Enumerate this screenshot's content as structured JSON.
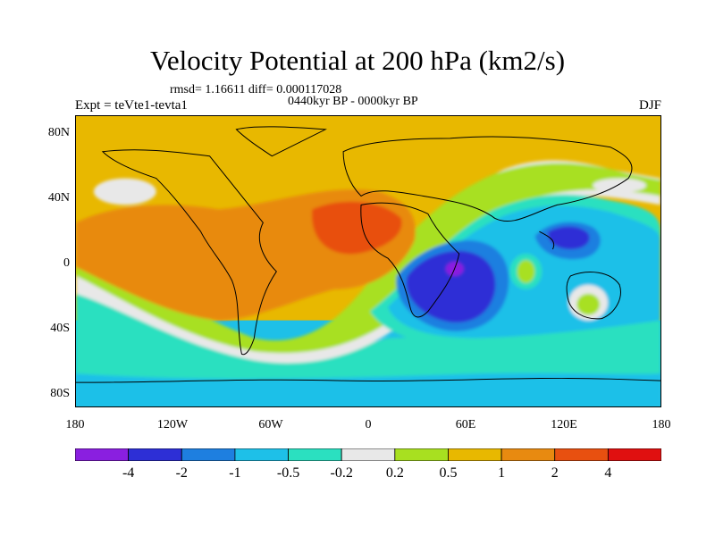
{
  "title": "Velocity Potential at 200 hPa (km2/s)",
  "stats": "rmsd= 1.16611 diff= 0.000117028",
  "period": "0440kyr BP - 0000kyr BP",
  "experiment": "Expt = teVte1-tevta1",
  "season": "DJF",
  "y_ticks": [
    "80N",
    "40N",
    "0",
    "40S",
    "80S"
  ],
  "x_ticks": [
    "180",
    "120W",
    "60W",
    "0",
    "60E",
    "120E",
    "180"
  ],
  "colorbar": {
    "labels": [
      "-4",
      "-2",
      "-1",
      "-0.5",
      "-0.2",
      "0.2",
      "0.5",
      "1",
      "2",
      "4"
    ],
    "colors": [
      "#8a1fe0",
      "#2d2fd6",
      "#1e7fe0",
      "#1ec0e8",
      "#2be0c0",
      "#e8e8e8",
      "#a8e020",
      "#e8b800",
      "#e88a10",
      "#e85010",
      "#e01010"
    ]
  },
  "chart_data": {
    "type": "heatmap",
    "title": "Velocity Potential at 200 hPa (km2/s)",
    "x_axis": [
      "180",
      "120W",
      "60W",
      "0",
      "60E",
      "120E",
      "180"
    ],
    "y_axis": [
      "80N",
      "40N",
      "0",
      "40S",
      "80S"
    ],
    "contour_levels": [
      -4,
      -2,
      -1,
      -0.5,
      -0.2,
      0.2,
      0.5,
      1,
      2,
      4
    ],
    "features": [
      {
        "label": "minimum",
        "lon": 55,
        "lat": -5,
        "level": "< -4"
      },
      {
        "label": "maximum",
        "lon": 0,
        "lat": 18,
        "level": "2 to 4"
      }
    ]
  }
}
